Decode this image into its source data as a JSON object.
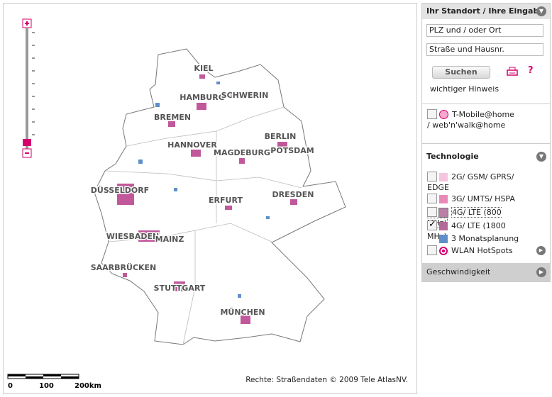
{
  "map": {
    "cities": [
      "KIEL",
      "HAMBURG",
      "SCHWERIN",
      "BREMEN",
      "BERLIN",
      "POTSDAM",
      "HANNOVER",
      "MAGDEBURG",
      "DÜSSELDORF",
      "DRESDEN",
      "ERFURT",
      "WIESBADEN",
      "MAINZ",
      "SAARBRÜCKEN",
      "STUTTGART",
      "MÜNCHEN"
    ],
    "scale_labels": [
      "0",
      "100",
      "200km"
    ],
    "copyright": "Rechte: Straßendaten © 2009 Tele AtlasNV."
  },
  "sidebar": {
    "location": {
      "title": "Ihr Standort / Ihre Eingabe",
      "inputs": [
        "PLZ und / oder Ort",
        "Straße und Hausnr."
      ],
      "search": "Suchen",
      "help_icon": "?",
      "note": "wichtiger Hinweis"
    },
    "home": {
      "label": "T-Mobile@home / web'n'walk@home",
      "checked": false
    },
    "technology": {
      "title": "Technologie",
      "items": [
        {
          "label": "2G/ GSM/ GPRS/ EDGE",
          "checkbox": true,
          "checked": false,
          "marker": "square",
          "color": "#f5c4de",
          "outlined": false
        },
        {
          "label": "3G/ UMTS/ HSPA",
          "checkbox": true,
          "checked": false,
          "marker": "square",
          "color": "#e889b8",
          "outlined": false
        },
        {
          "label": "4G/ LTE (800 MHz)",
          "checkbox": true,
          "checked": false,
          "marker": "square",
          "color": "#b97fa6",
          "outlined": true
        },
        {
          "label": "4G/ LTE (1800 MHz)",
          "checkbox": true,
          "checked": true,
          "marker": "square",
          "color": "#b46a99",
          "outlined": false
        },
        {
          "label": "3 Monatsplanung",
          "checkbox": false,
          "checked": false,
          "marker": "square",
          "color": "#5f8fc9",
          "outlined": false
        },
        {
          "label": "WLAN HotSpots",
          "checkbox": true,
          "checked": false,
          "marker": "ring",
          "color": "#d4006e",
          "outlined": false
        }
      ]
    },
    "speed": {
      "title": "Geschwindigkeit"
    }
  }
}
